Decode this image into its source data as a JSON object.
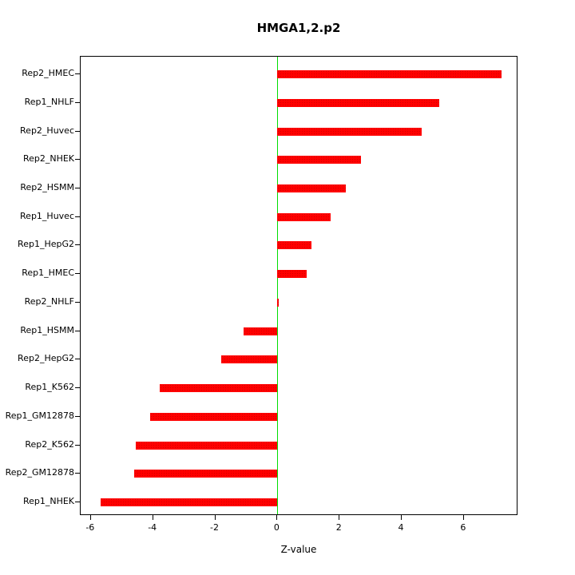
{
  "title": "HMGA1,2.p2",
  "chart_data": {
    "type": "bar",
    "orientation": "horizontal",
    "title": "HMGA1,2.p2",
    "xlabel": "Z-value",
    "ylabel": "",
    "categories": [
      "Rep2_HMEC",
      "Rep1_NHLF",
      "Rep2_Huvec",
      "Rep2_NHEK",
      "Rep2_HSMM",
      "Rep1_Huvec",
      "Rep1_HepG2",
      "Rep1_HMEC",
      "Rep2_NHLF",
      "Rep1_HSMM",
      "Rep2_HepG2",
      "Rep1_K562",
      "Rep1_GM12878",
      "Rep2_K562",
      "Rep2_GM12878",
      "Rep1_NHEK"
    ],
    "values": [
      7.2,
      5.2,
      4.65,
      2.7,
      2.2,
      1.7,
      1.1,
      0.95,
      0.05,
      -1.1,
      -1.8,
      -3.8,
      -4.1,
      -4.55,
      -4.6,
      -5.7
    ],
    "xlim": [
      -6.33,
      7.75
    ],
    "xticks": [
      -6,
      -4,
      -2,
      0,
      2,
      4,
      6
    ],
    "grid": false,
    "legend": "none",
    "bar_color": "#ff0000",
    "zero_line_color": "#00de00",
    "border_color": "#000000"
  }
}
